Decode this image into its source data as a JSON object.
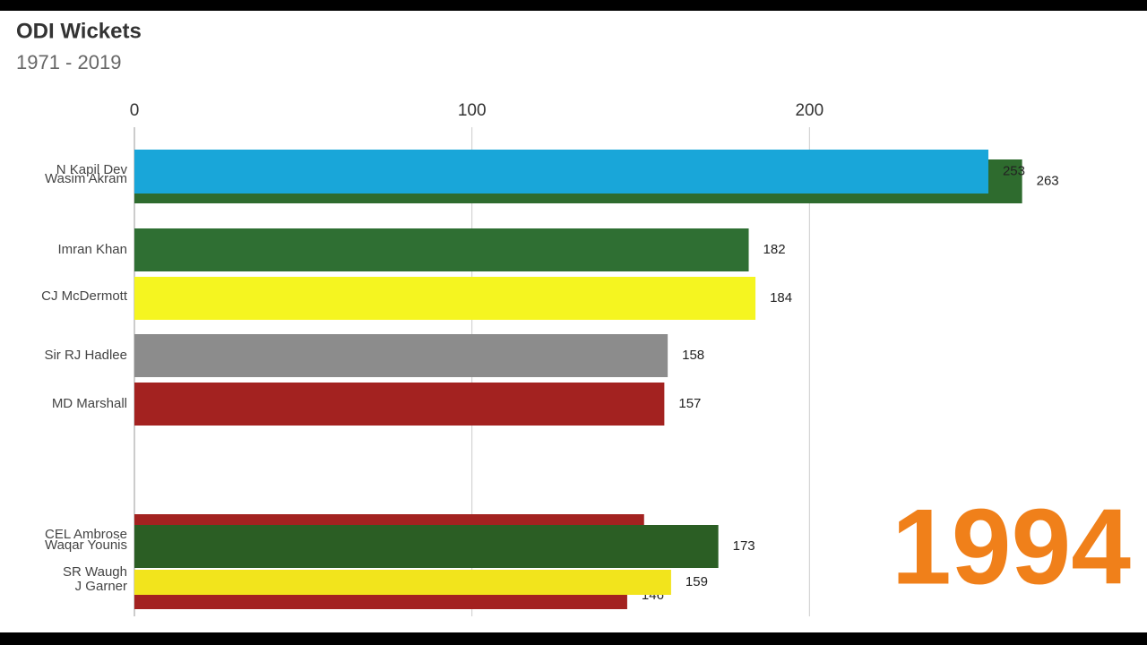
{
  "chart_data": {
    "type": "bar",
    "orientation": "horizontal",
    "title": "ODI Wickets",
    "subtitle": "1971 - 2019",
    "year_label": "1994",
    "categories": [
      "N Kapil Dev",
      "Wasim Akram",
      "Imran Khan",
      "CJ McDermott",
      "Sir RJ Hadlee",
      "MD Marshall",
      "CEL Ambrose",
      "Waqar Younis",
      "SR Waugh",
      "J Garner"
    ],
    "values": [
      253,
      263,
      182,
      184,
      158,
      157,
      151,
      173,
      159,
      146
    ],
    "colors": [
      "#19a6d9",
      "#2e6b2e",
      "#2f6f33",
      "#f5f520",
      "#8c8c8c",
      "#a32220",
      "#a32220",
      "#2b5e24",
      "#f2e41c",
      "#a32220"
    ],
    "xlim": [
      0,
      300
    ],
    "xticks": [
      0,
      100,
      200
    ],
    "grid": true
  }
}
